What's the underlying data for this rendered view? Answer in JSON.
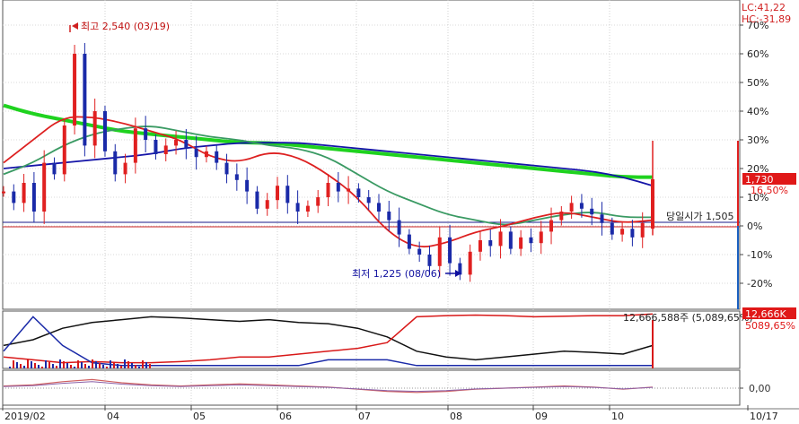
{
  "chart_data": {
    "type": "line",
    "corner_readout": {
      "lc": "LC:41,22",
      "hc": "HC:-31,89"
    },
    "y_axis_ticks": [
      "70%",
      "60%",
      "50%",
      "40%",
      "30%",
      "20%",
      "10%",
      "0%",
      "-10%",
      "-20%"
    ],
    "x_axis_ticks": [
      "2019/02",
      "04",
      "05",
      "06",
      "07",
      "08",
      "09",
      "10",
      "10/17"
    ],
    "annotations": {
      "high": "최고 2,540 (03/19)",
      "low": "최저 1,225 (08/06)",
      "open": "당일시가 1,505"
    },
    "price_tag": {
      "value": "1,730",
      "pct": "16,50%"
    },
    "volume_panel": {
      "text": "12,666,588주 (5,089,65%)",
      "tag_value": "12,666K",
      "tag_pct": "5089,65%"
    },
    "macd_panel": {
      "zero_label": "0,00"
    },
    "price_pct_series": [
      12,
      8,
      15,
      5,
      22,
      18,
      35,
      60,
      28,
      40,
      26,
      18,
      22,
      34,
      30,
      25,
      28,
      30,
      27,
      24,
      26,
      22,
      18,
      16,
      12,
      6,
      9,
      14,
      8,
      5,
      7,
      10,
      15,
      12,
      13,
      10,
      8,
      5,
      2,
      -3,
      -8,
      -10,
      -14,
      -4,
      -13,
      -17,
      -9,
      -5,
      -7,
      -2,
      -8,
      -4,
      -6,
      -2,
      2,
      5,
      8,
      6,
      4,
      1,
      -3,
      -1,
      -4,
      1,
      16
    ],
    "series": [
      {
        "name": "",
        "color": "#1fd21f",
        "values": [
          42,
          39,
          37,
          35,
          33,
          32,
          31,
          30,
          29,
          29,
          28,
          27,
          26,
          25,
          24,
          23,
          22,
          21,
          20,
          19,
          18,
          17,
          17
        ]
      },
      {
        "name": "",
        "color": "#1515a8",
        "values": [
          20,
          21,
          22,
          23,
          24,
          25,
          27,
          28,
          29,
          29,
          29,
          28,
          27,
          26,
          25,
          24,
          23,
          22,
          21,
          20,
          19,
          17,
          14
        ]
      },
      {
        "name": "",
        "color": "#3a9a63",
        "values": [
          18,
          22,
          28,
          32,
          34,
          35,
          33,
          31,
          30,
          28,
          27,
          24,
          18,
          12,
          8,
          4,
          2,
          0,
          2,
          4,
          5,
          3,
          3
        ]
      },
      {
        "name": "",
        "color": "#dd2020",
        "values": [
          22,
          30,
          38,
          38,
          36,
          33,
          30,
          24,
          22,
          26,
          24,
          18,
          10,
          -2,
          -8,
          -6,
          -2,
          0,
          3,
          5,
          3,
          1,
          2
        ]
      }
    ]
  }
}
